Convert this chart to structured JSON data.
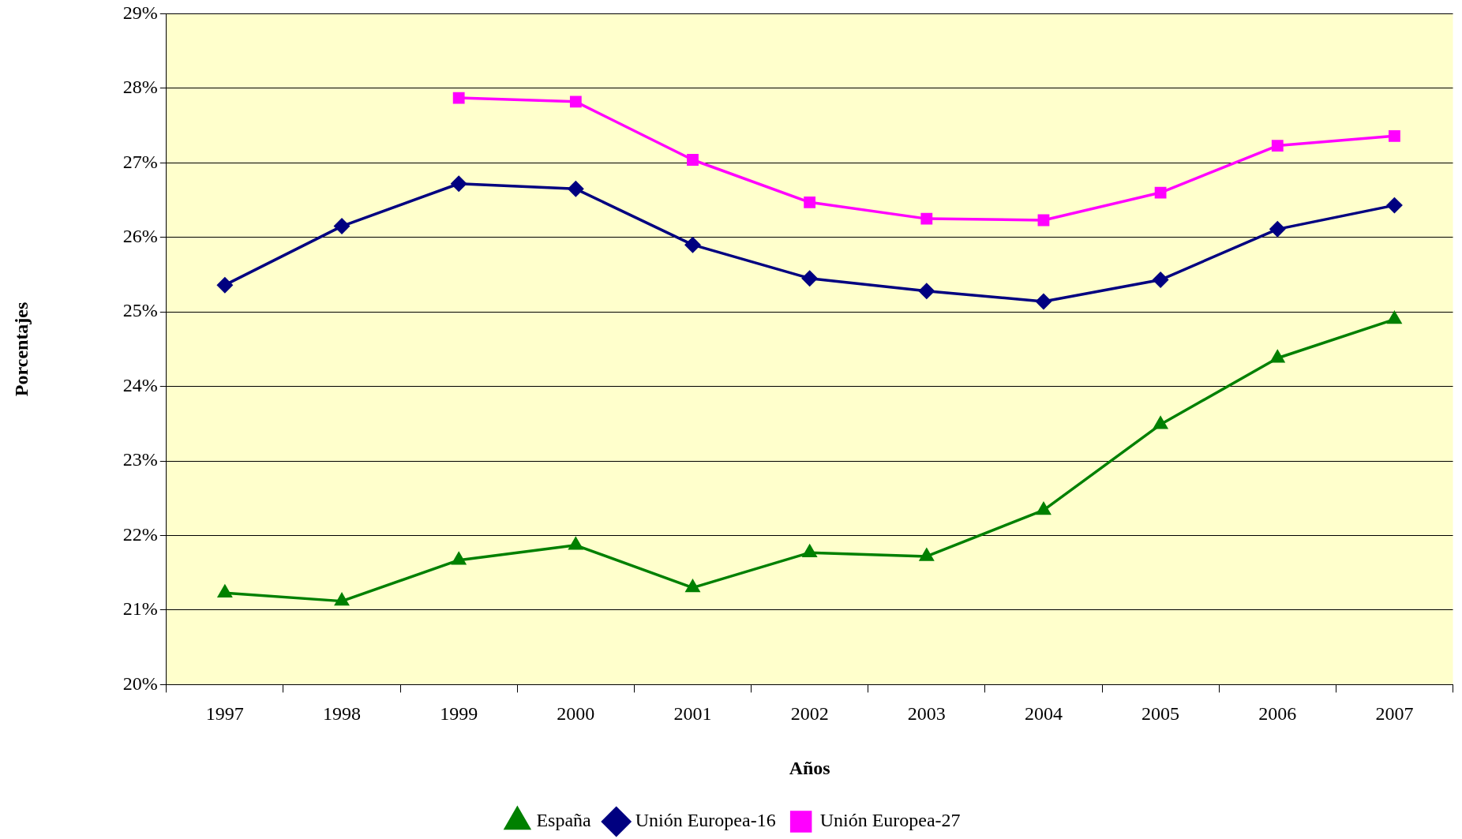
{
  "chart_data": {
    "type": "line",
    "xlabel": "Años",
    "ylabel": "Porcentajes",
    "categories": [
      "1997",
      "1998",
      "1999",
      "2000",
      "2001",
      "2002",
      "2003",
      "2004",
      "2005",
      "2006",
      "2007"
    ],
    "series": [
      {
        "name": "España",
        "color": "#008000",
        "marker": "triangle",
        "values": [
          21.23,
          21.12,
          21.67,
          21.87,
          21.3,
          21.77,
          21.72,
          22.34,
          23.49,
          24.38,
          24.9
        ]
      },
      {
        "name": "Unión Europea-16",
        "color": "#000080",
        "marker": "diamond",
        "values": [
          25.36,
          26.15,
          26.72,
          26.65,
          25.9,
          25.45,
          25.28,
          25.14,
          25.43,
          26.11,
          26.43
        ]
      },
      {
        "name": "Unión Europea-27",
        "color": "#ff00ff",
        "marker": "square",
        "values": [
          null,
          null,
          27.87,
          27.82,
          27.04,
          26.47,
          26.25,
          26.23,
          26.6,
          27.23,
          27.36
        ]
      }
    ],
    "ylim": [
      20,
      29
    ],
    "yticks": [
      {
        "value": 20,
        "label": "20%"
      },
      {
        "value": 21,
        "label": "21%"
      },
      {
        "value": 22,
        "label": "22%"
      },
      {
        "value": 23,
        "label": "23%"
      },
      {
        "value": 24,
        "label": "24%"
      },
      {
        "value": 25,
        "label": "25%"
      },
      {
        "value": 26,
        "label": "26%"
      },
      {
        "value": 27,
        "label": "27%"
      },
      {
        "value": 28,
        "label": "28%"
      },
      {
        "value": 29,
        "label": "29%"
      }
    ],
    "grid": "y",
    "legend": "bottom",
    "line_style": "solid"
  }
}
